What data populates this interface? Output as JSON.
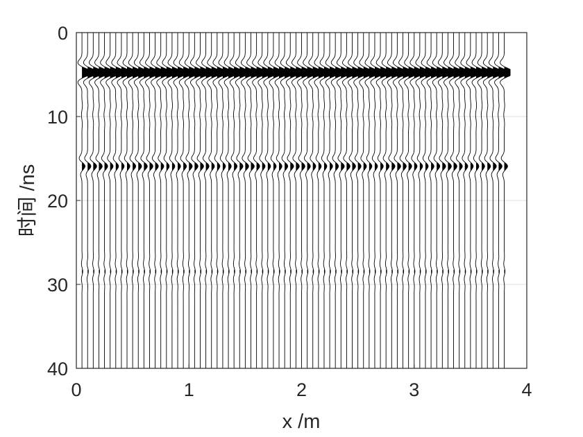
{
  "chart_data": {
    "type": "line",
    "title": "",
    "xlabel": "x /m",
    "ylabel": "时间 /ns",
    "xlim": [
      0,
      4
    ],
    "ylim": [
      0,
      40
    ],
    "y_reversed": true,
    "xticks": [
      0,
      1,
      2,
      3,
      4
    ],
    "yticks": [
      0,
      10,
      20,
      30,
      40
    ],
    "xtick_labels": [
      "0",
      "1",
      "2",
      "3",
      "4"
    ],
    "ytick_labels": [
      "0",
      "10",
      "20",
      "30",
      "40"
    ],
    "grid": true,
    "legend": "none",
    "trace_start_x": 0.05,
    "trace_spacing": 0.05,
    "trace_count": 76,
    "fill_positive": true,
    "events": [
      {
        "name": "direct wave pulse",
        "time_ns": 4.8,
        "amplitude": "saturated (clipped)"
      },
      {
        "name": "reflection",
        "time_ns": 15.6,
        "amplitude": "moderate"
      },
      {
        "name": "weak late arrival",
        "time_ns": 28.5,
        "amplitude": "weak"
      }
    ],
    "colors": {
      "trace": "#000000",
      "fill": "#000000",
      "axis": "#262626",
      "grid": "#dfdfdf"
    }
  }
}
